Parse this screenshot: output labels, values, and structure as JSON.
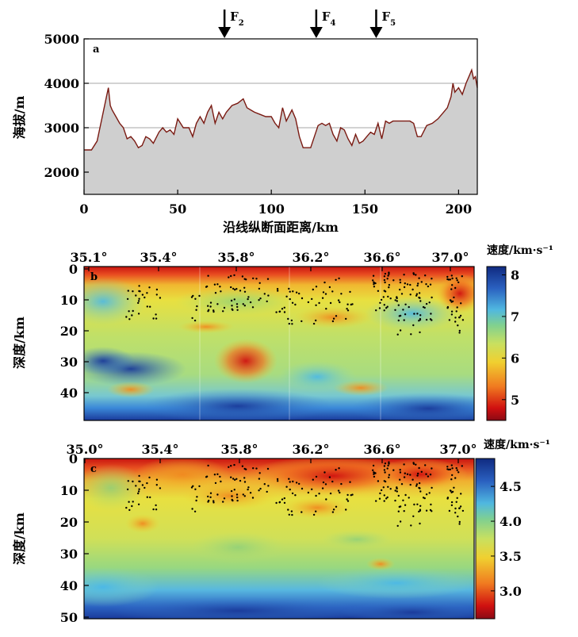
{
  "chart_data": [
    {
      "panel": "a",
      "type": "area",
      "ylabel": "海拔/m",
      "xlabel": "沿线纵断面距离/km",
      "xlim": [
        0,
        210
      ],
      "ylim": [
        1500,
        5000
      ],
      "xticks": [
        "0",
        "50",
        "100",
        "150",
        "200"
      ],
      "yticks": [
        "2000",
        "3000",
        "4000",
        "5000"
      ],
      "grid": true,
      "fault_markers": [
        {
          "label": "F",
          "sub": "2",
          "x": 75
        },
        {
          "label": "F",
          "sub": "4",
          "x": 124
        },
        {
          "label": "F",
          "sub": "5",
          "x": 156
        }
      ],
      "x": [
        0,
        4,
        7,
        10,
        12,
        13,
        14,
        15,
        17,
        19,
        21,
        23,
        25,
        27,
        29,
        31,
        33,
        35,
        37,
        40,
        42,
        44,
        46,
        48,
        50,
        53,
        56,
        58,
        60,
        62,
        64,
        66,
        68,
        70,
        72,
        74,
        76,
        79,
        82,
        85,
        87,
        89,
        91,
        94,
        97,
        100,
        102,
        104,
        106,
        108,
        111,
        113,
        115,
        117,
        119,
        121,
        123,
        125,
        127,
        129,
        131,
        133,
        135,
        137,
        139,
        141,
        143,
        145,
        147,
        149,
        151,
        153,
        155,
        157,
        159,
        161,
        163,
        165,
        167,
        170,
        172,
        174,
        176,
        178,
        180,
        183,
        186,
        189,
        192,
        194,
        196,
        197,
        198,
        199,
        200,
        202,
        204,
        206,
        207,
        208,
        209,
        210
      ],
      "y": [
        2500,
        2500,
        2700,
        3300,
        3700,
        3900,
        3500,
        3400,
        3250,
        3100,
        3000,
        2750,
        2800,
        2700,
        2550,
        2600,
        2800,
        2750,
        2650,
        2900,
        3000,
        2900,
        2950,
        2850,
        3200,
        3000,
        3000,
        2800,
        3100,
        3250,
        3100,
        3350,
        3500,
        3100,
        3350,
        3200,
        3350,
        3500,
        3550,
        3650,
        3450,
        3400,
        3350,
        3300,
        3250,
        3250,
        3100,
        3000,
        3450,
        3150,
        3400,
        3200,
        2800,
        2550,
        2550,
        2550,
        2800,
        3050,
        3100,
        3050,
        3100,
        2850,
        2700,
        3000,
        2950,
        2750,
        2600,
        2850,
        2650,
        2700,
        2800,
        2900,
        2850,
        3100,
        2750,
        3150,
        3100,
        3150,
        3150,
        3150,
        3150,
        3150,
        3100,
        2800,
        2800,
        3050,
        3100,
        3200,
        3350,
        3450,
        3700,
        4000,
        3800,
        3850,
        3900,
        3750,
        4000,
        4200,
        4300,
        4100,
        4150,
        3900
      ]
    },
    {
      "panel": "b",
      "type": "heatmap",
      "ylabel": "深度/km",
      "xtick_labels": [
        "35.1°",
        "35.4°",
        "35.8°",
        "36.2°",
        "36.6°",
        "37.0°"
      ],
      "ylim": [
        0,
        50
      ],
      "yticks": [
        "0",
        "10",
        "20",
        "30",
        "40"
      ],
      "colorbar": {
        "title": "速度/km·s⁻¹",
        "range": [
          4.5,
          8.2
        ],
        "ticks": [
          "5",
          "6",
          "7",
          "8"
        ]
      }
    },
    {
      "panel": "c",
      "type": "heatmap",
      "ylabel": "深度/km",
      "xtick_labels": [
        "35.0°",
        "35.4°",
        "35.8°",
        "36.2°",
        "36.6°",
        "37.0°"
      ],
      "ylim": [
        0,
        50
      ],
      "yticks": [
        "0",
        "10",
        "20",
        "30",
        "40",
        "50"
      ],
      "colorbar": {
        "title": "速度/km·s⁻¹",
        "range": [
          2.6,
          4.9
        ],
        "ticks": [
          "3.0",
          "3.5",
          "4.0",
          "4.5"
        ]
      }
    }
  ],
  "colors": {
    "low_velocity": "#d01010",
    "mid_velocity": "#e8d830",
    "high_velocity": "#1a3a9a",
    "profile_line": "#7a1a12",
    "profile_fill": "#cfcfcf"
  }
}
